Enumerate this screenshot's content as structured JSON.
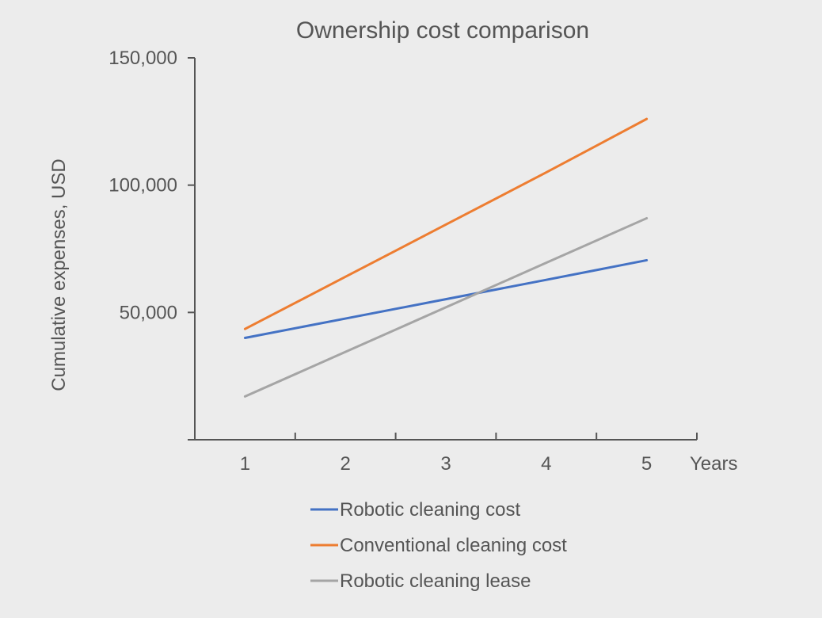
{
  "chart_data": {
    "type": "line",
    "title": "Ownership cost comparison",
    "xlabel": "Years",
    "ylabel": "Cumulative expenses, USD",
    "x": [
      1,
      2,
      3,
      4,
      5
    ],
    "x_ticks": [
      "1",
      "2",
      "3",
      "4",
      "5"
    ],
    "xlim": [
      0.5,
      5.5
    ],
    "ylim": [
      0,
      150000
    ],
    "y_ticks": [
      50000,
      100000,
      150000
    ],
    "y_tick_labels": [
      "50,000",
      "100,000",
      "150,000"
    ],
    "grid": false,
    "legend_position": "bottom",
    "series": [
      {
        "name": "Robotic cleaning cost",
        "color": "#4472c4",
        "values": [
          40000,
          47600,
          55200,
          62800,
          70500
        ]
      },
      {
        "name": "Conventional cleaning cost",
        "color": "#ed7d31",
        "values": [
          43500,
          64000,
          84500,
          105000,
          126000
        ]
      },
      {
        "name": "Robotic cleaning lease",
        "color": "#a5a5a5",
        "values": [
          17000,
          34500,
          52000,
          69500,
          87000
        ]
      }
    ]
  }
}
